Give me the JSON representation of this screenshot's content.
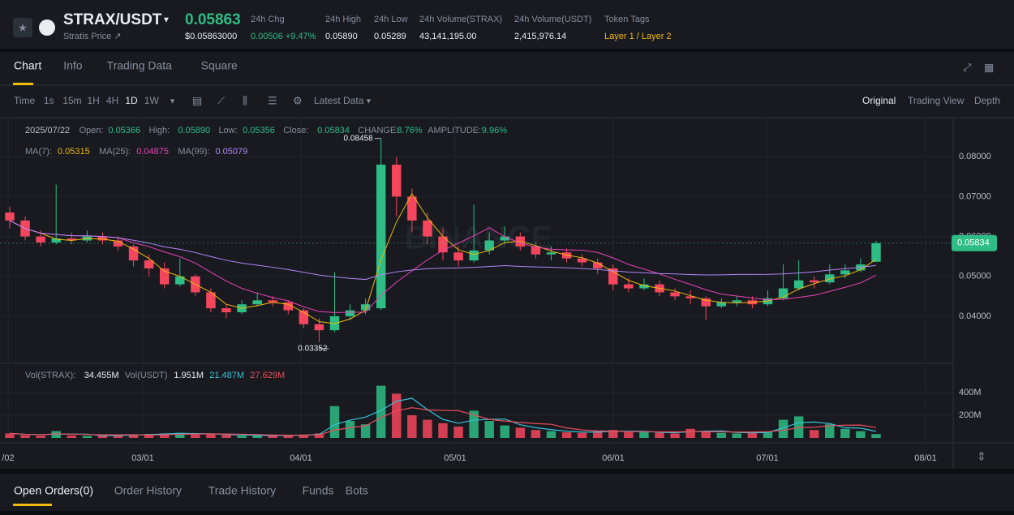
{
  "header": {
    "pair": "STRAX/USDT",
    "price": "0.05863",
    "subtitle": "Stratis Price ↗",
    "price_usd": "$0.05863000",
    "stats": [
      {
        "label": "24h Chg",
        "value": "0.00506 +9.47%",
        "color": "#2ebd85"
      },
      {
        "label": "24h High",
        "value": "0.05890",
        "color": "#eaecef"
      },
      {
        "label": "24h Low",
        "value": "0.05289",
        "color": "#eaecef"
      },
      {
        "label": "24h Volume(STRAX)",
        "value": "43,141,195.00",
        "color": "#eaecef"
      },
      {
        "label": "24h Volume(USDT)",
        "value": "2,415,976.14",
        "color": "#eaecef"
      },
      {
        "label": "Token Tags",
        "value": "Layer 1 / Layer 2",
        "color": "#f0b90b"
      }
    ]
  },
  "tabs": [
    "Chart",
    "Info",
    "Trading Data",
    "Square"
  ],
  "toolbar": {
    "intervals": [
      "Time",
      "1s",
      "15m",
      "1H",
      "4H",
      "1D",
      "1W"
    ],
    "latest": "Latest Data",
    "views": [
      "Original",
      "Trading View",
      "Depth"
    ]
  },
  "bottom_tabs": [
    "Open Orders(0)",
    "Order History",
    "Trade History",
    "Funds",
    "Bots"
  ],
  "chart_data": {
    "type": "candlestick",
    "watermark": "BINANCE",
    "up_color": "#2ebd85",
    "down_color": "#f6465d",
    "ohlc_legend": [
      {
        "label": "2025/07/22",
        "value": ""
      },
      {
        "label": "Open:",
        "value": "0.05366"
      },
      {
        "label": "High:",
        "value": "0.05890"
      },
      {
        "label": "Low:",
        "value": "0.05356"
      },
      {
        "label": "Close:",
        "value": "0.05834"
      },
      {
        "label": "CHANGE:",
        "value": "8.76%"
      },
      {
        "label": "AMPLITUDE:",
        "value": "9.96%"
      }
    ],
    "ma": [
      {
        "name": "MA(7):",
        "value": "0.05315",
        "color": "#f0b90b"
      },
      {
        "name": "MA(25):",
        "value": "0.04875",
        "color": "#eb40b5"
      },
      {
        "name": "MA(99):",
        "value": "0.05079",
        "color": "#b385f8"
      }
    ],
    "vol_legend": [
      {
        "name": "Vol(STRAX):",
        "value": "34.455M",
        "color": "#eaecef"
      },
      {
        "name": "Vol(USDT)",
        "value": "1.951M",
        "color": "#eaecef"
      },
      {
        "name": "",
        "value": "21.487M",
        "color": "#35c2d9"
      },
      {
        "name": "",
        "value": "27.629M",
        "color": "#eb4d5c"
      }
    ],
    "annotations": [
      "0.08458",
      "0.03352"
    ],
    "last_price": "0.05834",
    "categories": [
      "/02",
      "03/01",
      "04/01",
      "05/01",
      "06/01",
      "07/01",
      "08/01"
    ],
    "ylim": [
      0.0282,
      0.0898
    ],
    "yticks": [
      {
        "value": 0.08,
        "label": "0.08000"
      },
      {
        "value": 0.07,
        "label": "0.07000"
      },
      {
        "value": 0.06,
        "label": "0.06000"
      },
      {
        "value": 0.05,
        "label": "0.05000"
      },
      {
        "value": 0.04,
        "label": "0.04000"
      }
    ],
    "vlim": [
      0,
      650000000
    ],
    "vticks": [
      {
        "value": 400000000,
        "label": "400M"
      },
      {
        "value": 200000000,
        "label": "200M"
      }
    ],
    "candles": [
      [
        0.066,
        0.0675,
        0.062,
        0.064
      ],
      [
        0.064,
        0.065,
        0.059,
        0.06
      ],
      [
        0.06,
        0.0615,
        0.0575,
        0.0585
      ],
      [
        0.0585,
        0.073,
        0.058,
        0.0595
      ],
      [
        0.0595,
        0.061,
        0.058,
        0.059
      ],
      [
        0.059,
        0.0615,
        0.0585,
        0.06
      ],
      [
        0.06,
        0.061,
        0.058,
        0.059
      ],
      [
        0.059,
        0.06,
        0.0565,
        0.0575
      ],
      [
        0.0575,
        0.058,
        0.0525,
        0.054
      ],
      [
        0.054,
        0.0555,
        0.05,
        0.052
      ],
      [
        0.052,
        0.0535,
        0.047,
        0.048
      ],
      [
        0.048,
        0.0545,
        0.0475,
        0.05
      ],
      [
        0.05,
        0.0505,
        0.045,
        0.046
      ],
      [
        0.046,
        0.047,
        0.041,
        0.042
      ],
      [
        0.042,
        0.043,
        0.0395,
        0.041
      ],
      [
        0.041,
        0.044,
        0.0405,
        0.043
      ],
      [
        0.043,
        0.046,
        0.0425,
        0.044
      ],
      [
        0.044,
        0.045,
        0.0425,
        0.0435
      ],
      [
        0.0435,
        0.044,
        0.0405,
        0.0415
      ],
      [
        0.0415,
        0.042,
        0.037,
        0.038
      ],
      [
        0.038,
        0.0395,
        0.03352,
        0.0365
      ],
      [
        0.0365,
        0.051,
        0.036,
        0.04
      ],
      [
        0.04,
        0.043,
        0.039,
        0.0415
      ],
      [
        0.0415,
        0.0445,
        0.0405,
        0.043
      ],
      [
        0.042,
        0.08458,
        0.0415,
        0.078
      ],
      [
        0.078,
        0.08,
        0.065,
        0.07
      ],
      [
        0.07,
        0.072,
        0.061,
        0.064
      ],
      [
        0.064,
        0.066,
        0.058,
        0.06
      ],
      [
        0.06,
        0.062,
        0.054,
        0.056
      ],
      [
        0.056,
        0.0575,
        0.0525,
        0.054
      ],
      [
        0.054,
        0.068,
        0.0535,
        0.0565
      ],
      [
        0.0565,
        0.061,
        0.0555,
        0.059
      ],
      [
        0.059,
        0.0625,
        0.058,
        0.06
      ],
      [
        0.06,
        0.061,
        0.0565,
        0.0575
      ],
      [
        0.0575,
        0.0585,
        0.0545,
        0.0555
      ],
      [
        0.0555,
        0.0575,
        0.054,
        0.056
      ],
      [
        0.056,
        0.057,
        0.0535,
        0.0545
      ],
      [
        0.0545,
        0.0555,
        0.0525,
        0.0535
      ],
      [
        0.0535,
        0.0545,
        0.0505,
        0.052
      ],
      [
        0.052,
        0.053,
        0.0465,
        0.048
      ],
      [
        0.048,
        0.0495,
        0.046,
        0.047
      ],
      [
        0.047,
        0.0495,
        0.0465,
        0.048
      ],
      [
        0.048,
        0.049,
        0.045,
        0.046
      ],
      [
        0.046,
        0.047,
        0.044,
        0.045
      ],
      [
        0.045,
        0.0465,
        0.043,
        0.0445
      ],
      [
        0.0445,
        0.045,
        0.039,
        0.0425
      ],
      [
        0.0425,
        0.0445,
        0.042,
        0.0435
      ],
      [
        0.0435,
        0.045,
        0.0425,
        0.044
      ],
      [
        0.044,
        0.045,
        0.042,
        0.043
      ],
      [
        0.043,
        0.0465,
        0.0425,
        0.0445
      ],
      [
        0.0445,
        0.053,
        0.044,
        0.047
      ],
      [
        0.047,
        0.054,
        0.0465,
        0.049
      ],
      [
        0.049,
        0.05,
        0.047,
        0.0485
      ],
      [
        0.0485,
        0.053,
        0.048,
        0.0505
      ],
      [
        0.0505,
        0.053,
        0.0495,
        0.0515
      ],
      [
        0.0515,
        0.0545,
        0.051,
        0.053
      ],
      [
        0.05366,
        0.0589,
        0.05356,
        0.05834
      ]
    ],
    "volumes": [
      40000000,
      25000000,
      20000000,
      60000000,
      22000000,
      18000000,
      20000000,
      25000000,
      30000000,
      35000000,
      40000000,
      45000000,
      30000000,
      35000000,
      25000000,
      20000000,
      25000000,
      20000000,
      22000000,
      30000000,
      40000000,
      280000000,
      150000000,
      120000000,
      460000000,
      390000000,
      200000000,
      160000000,
      130000000,
      100000000,
      240000000,
      150000000,
      110000000,
      90000000,
      70000000,
      60000000,
      50000000,
      45000000,
      60000000,
      70000000,
      50000000,
      55000000,
      45000000,
      40000000,
      80000000,
      60000000,
      45000000,
      40000000,
      50000000,
      55000000,
      160000000,
      190000000,
      70000000,
      120000000,
      80000000,
      60000000,
      34455000
    ]
  }
}
